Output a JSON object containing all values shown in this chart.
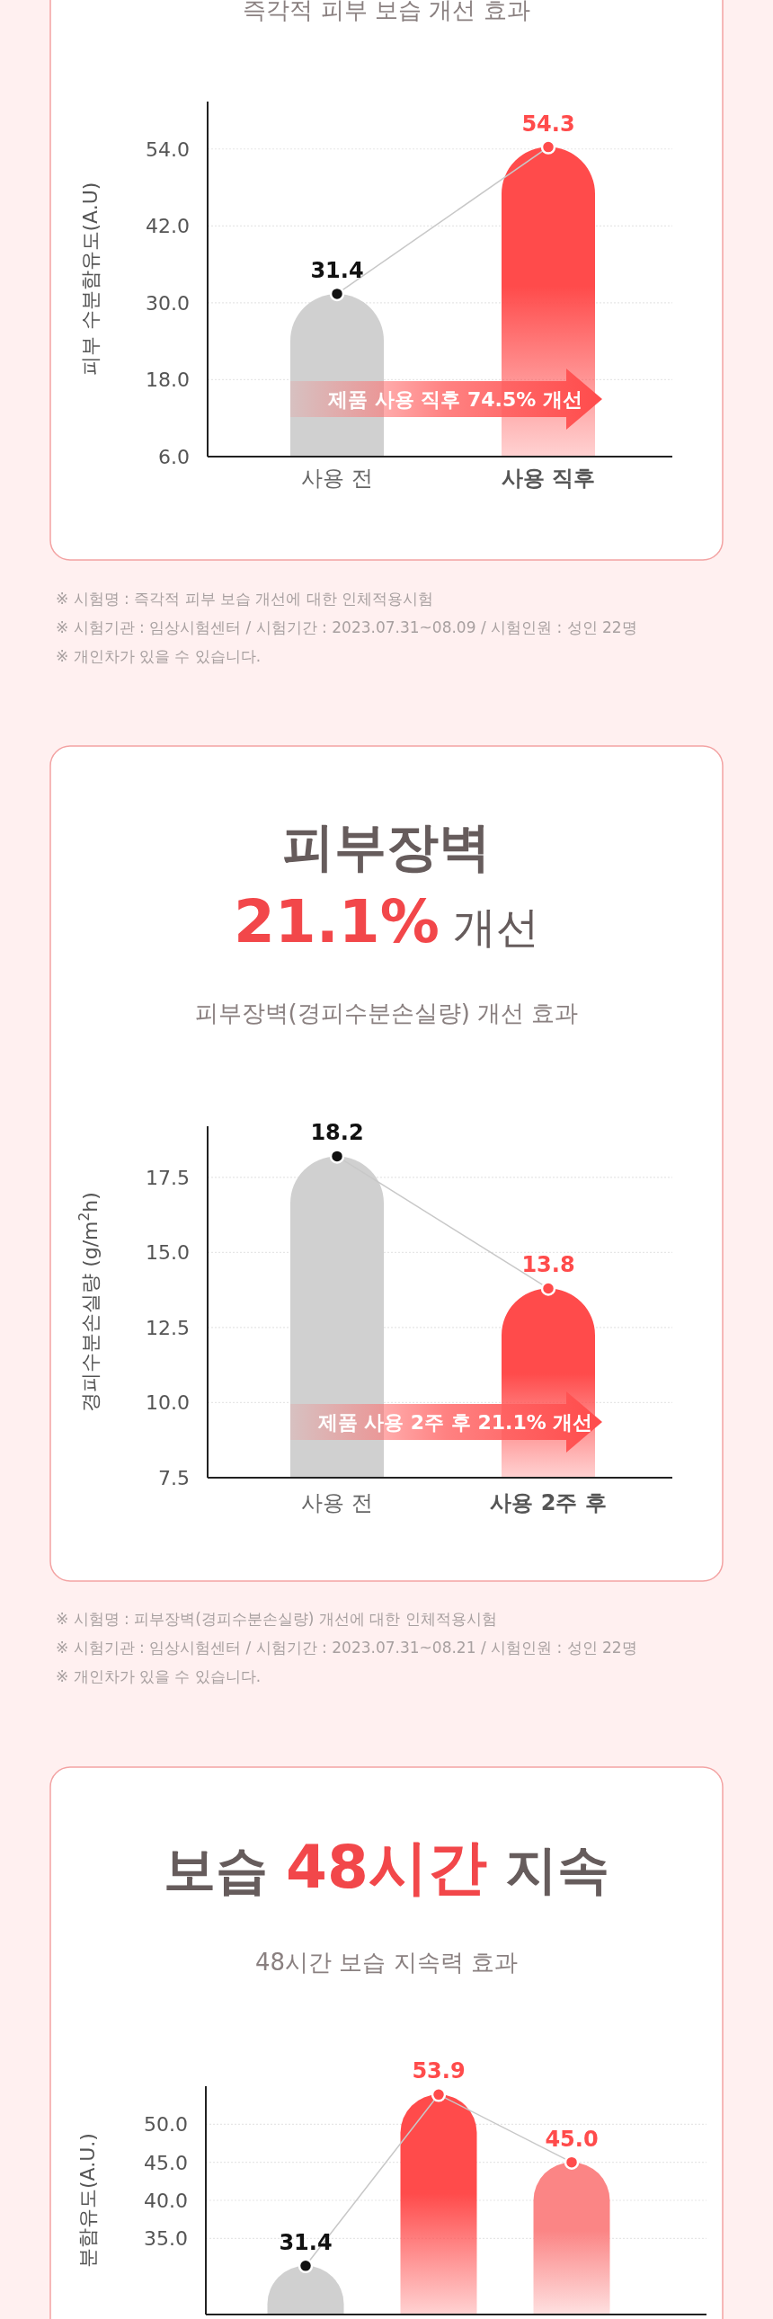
{
  "chart_data": [
    {
      "type": "bar",
      "subtitle": "즉각적 피부 보습 개선 효과",
      "ylabel": "피부 수분함유도(A.U)",
      "categories": [
        "사용 전",
        "사용 직후"
      ],
      "ylim": [
        6,
        61.4
      ],
      "yticks": [
        {
          "value": 6,
          "label": "6.0"
        },
        {
          "value": 18,
          "label": "18.0"
        },
        {
          "value": 30,
          "label": "30.0"
        },
        {
          "value": 42,
          "label": "42.0"
        },
        {
          "value": 54,
          "label": "54.0"
        }
      ],
      "grid": "y",
      "marker": "circle",
      "series": [
        {
          "colors": [
            "#d0d0d0",
            "#ff4b4b"
          ],
          "values": [
            31.4,
            54.3
          ]
        },
        {
          "type": "line",
          "color": "#c8c8c8",
          "colors": [
            "#111111",
            "#ff4b4b"
          ],
          "values": [
            31.4,
            54.3
          ],
          "value_labels": [
            "31.4",
            "54.3"
          ]
        }
      ],
      "annotations": [
        "제품 사용 직후 74.5% 개선",
        "※ 시험명 : 즉각적 피부 보습 개선에 대한 인체적용시험",
        "※ 시험기관 : 임상시험센터 / 시험기간 : 2023.07.31~08.09 / 시험인원 : 성인 22명",
        "※ 개인차가 있을 수 있습니다."
      ]
    },
    {
      "type": "bar",
      "title": "피부장벽 **21.1%** 개선",
      "subtitle": "피부장벽(경피수분손실량) 개선 효과",
      "ylabel": "경피수분손실량 (g/m$^{2}$h)",
      "categories": [
        "사용 전",
        "사용 2주 후"
      ],
      "ylim": [
        7.5,
        19.2
      ],
      "yticks": [
        7.5,
        {
          "value": 10,
          "label": "10.0"
        },
        12.5,
        {
          "value": 15,
          "label": "15.0"
        },
        17.5
      ],
      "grid": "y",
      "marker": "circle",
      "series": [
        {
          "colors": [
            "#d0d0d0",
            "#ff4b4b"
          ],
          "values": [
            18.2,
            13.8
          ]
        },
        {
          "type": "line",
          "color": "#c8c8c8",
          "colors": [
            "#111111",
            "#ff4b4b"
          ],
          "values": [
            18.2,
            13.8
          ],
          "value_labels": [
            "18.2",
            "13.8"
          ]
        }
      ],
      "annotations": [
        "제품 사용 2주 후 21.1% 개선",
        "※ 시험명 : 피부장벽(경피수분손실량) 개선에 대한 인체적용시험",
        "※ 시험기관 : 임상시험센터 / 시험기간 : 2023.07.31~08.21 / 시험인원 : 성인 22명",
        "※ 개인차가 있을 수 있습니다."
      ]
    },
    {
      "type": "bar",
      "title": "보습 **48시간** 지속",
      "subtitle": "48시간 보습 지속력 효과",
      "ylabel": "분함유도(A.U.)",
      "categories": [
        null,
        null,
        null
      ],
      "ylim": [
        25,
        55
      ],
      "yticks": [
        {
          "value": 35,
          "label": "35.0"
        },
        {
          "value": 40,
          "label": "40.0"
        },
        {
          "value": 45,
          "label": "45.0"
        },
        {
          "value": 50,
          "label": "50.0"
        }
      ],
      "grid": "y",
      "marker": "circle",
      "series": [
        {
          "colors": [
            "#d0d0d0",
            "#ff4b4b",
            "#fb8585"
          ],
          "values": [
            31.4,
            53.9,
            45.0
          ]
        },
        {
          "type": "line",
          "color": "#c8c8c8",
          "colors": [
            "#111111",
            "#ff4b4b",
            "#ff4b4b"
          ],
          "values": [
            31.4,
            53.9,
            45.0
          ],
          "value_labels": [
            "31.4",
            "53.9",
            "45.0"
          ]
        }
      ]
    }
  ]
}
